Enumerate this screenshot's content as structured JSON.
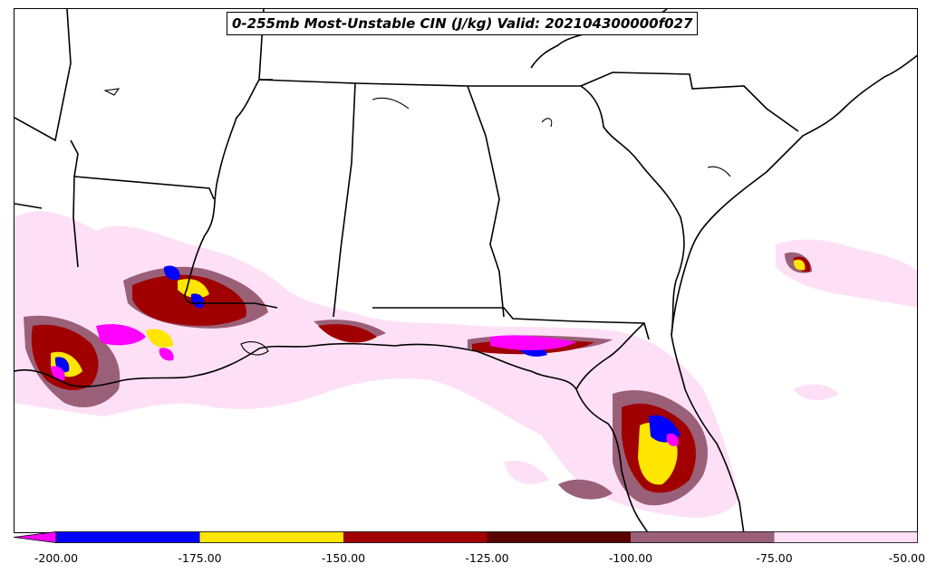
{
  "title": "0-255mb Most-Unstable CIN (J/kg) Valid: 202104300000f027",
  "colorbar": {
    "extend": "min",
    "extend_color": "#ff00ff",
    "levels": [
      {
        "from": -200,
        "to": -175,
        "color": "#0000ff"
      },
      {
        "from": -175,
        "to": -150,
        "color": "#ffe600"
      },
      {
        "from": -150,
        "to": -125,
        "color": "#a00000"
      },
      {
        "from": -125,
        "to": -100,
        "color": "#5a0000"
      },
      {
        "from": -100,
        "to": -75,
        "color": "#9a6078"
      },
      {
        "from": -75,
        "to": -50,
        "color": "#fde0f6"
      }
    ],
    "tick_labels": [
      "-200.00",
      "-175.00",
      "-150.00",
      "-125.00",
      "-100.00",
      "-75.00",
      "-50.00"
    ]
  },
  "colors": {
    "background": "#ffffff",
    "borders": "#000000"
  }
}
